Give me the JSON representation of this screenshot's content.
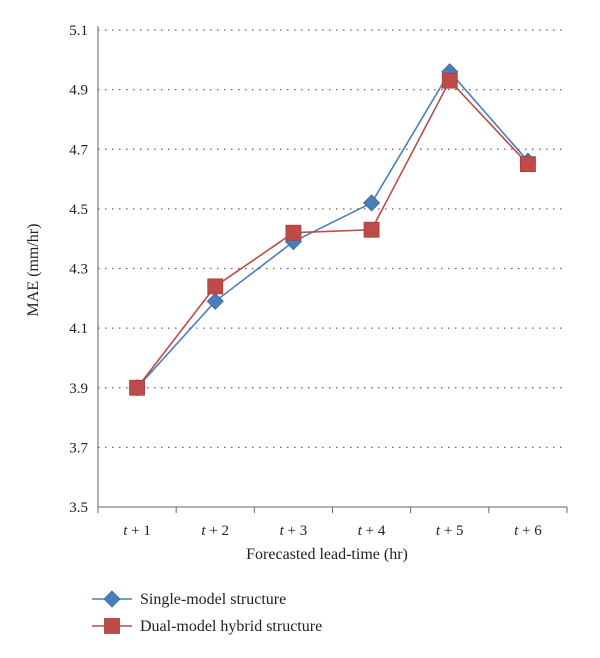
{
  "chart_data": {
    "type": "line",
    "categories": [
      "t + 1",
      "t + 2",
      "t + 3",
      "t + 4",
      "t + 5",
      "t + 6"
    ],
    "xlabel": "Forecasted lead-time (hr)",
    "ylabel": "MAE (mm/hr)",
    "ylim": [
      3.5,
      5.1
    ],
    "yticks": [
      "3.5",
      "3.7",
      "3.9",
      "4.1",
      "4.3",
      "4.5",
      "4.7",
      "4.9",
      "5.1"
    ],
    "grid": "horizontal dotted",
    "legend_position": "bottom-left",
    "series": [
      {
        "name": "Single-model structure",
        "marker": "diamond",
        "color": "#4a7ebb",
        "values": [
          3.9,
          4.19,
          4.39,
          4.52,
          4.96,
          4.66
        ]
      },
      {
        "name": "Dual-model hybrid structure",
        "marker": "square",
        "color": "#be4b48",
        "values": [
          3.9,
          4.24,
          4.42,
          4.43,
          4.93,
          4.65
        ]
      }
    ]
  }
}
